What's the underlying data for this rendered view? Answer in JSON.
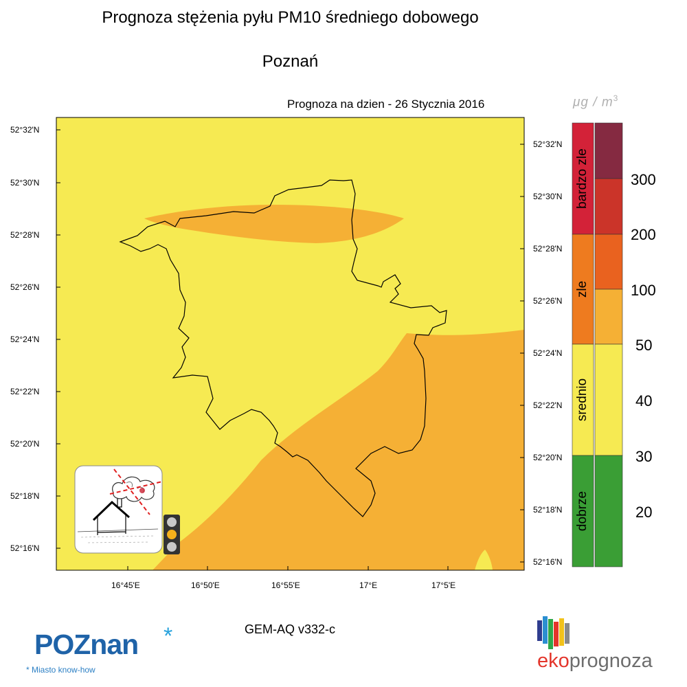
{
  "header": {
    "title": "Prognoza stężenia pyłu PM10 średniego dobowego",
    "city": "Poznań",
    "forecast_date": "Prognoza na dzien -  26 Stycznia 2016"
  },
  "legend": {
    "unit_main": "μg / m",
    "unit_exp": "3",
    "categories": [
      {
        "label": "bardzo zle",
        "color": "#d32238"
      },
      {
        "label": "zle",
        "color": "#ee7b1f"
      },
      {
        "label": "srednio",
        "color": "#f6ea52"
      },
      {
        "label": "dobrze",
        "color": "#3a9e35"
      }
    ],
    "bands": [
      {
        "color": "#852a41"
      },
      {
        "color": "#cb3429"
      },
      {
        "color": "#e9621f"
      },
      {
        "color": "#f5b035"
      },
      {
        "color": "#f6ea52"
      },
      {
        "color": "#f6ea52"
      },
      {
        "color": "#3a9e35"
      },
      {
        "color": "#3a9e35"
      }
    ],
    "levels": [
      "300",
      "200",
      "100",
      "50",
      "40",
      "30",
      "20"
    ]
  },
  "map": {
    "lat_labels_left": [
      "52°32'N",
      "52°30'N",
      "52°28'N",
      "52°26'N",
      "52°24'N",
      "52°22'N",
      "52°20'N",
      "52°18'N",
      "52°16'N"
    ],
    "lat_labels_right": [
      "52°32'N",
      "52°30'N",
      "52°28'N",
      "52°26'N",
      "52°24'N",
      "52°22'N",
      "52°20'N",
      "52°18'N",
      "52°16'N"
    ],
    "lon_labels": [
      "16°45'E",
      "16°50'E",
      "16°55'E",
      "17°E",
      "17°5'E"
    ],
    "colors": {
      "yellow": "#f6ea52",
      "orange": "#f5b035",
      "boundary": "#000000"
    }
  },
  "footer": {
    "model": "GEM-AQ v332-c",
    "poznan_logo": "POZnan",
    "poznan_star": "*",
    "poznan_tagline": "* Miasto know-how",
    "eko_logo_accent": "eko",
    "eko_logo_rest": "prognoza"
  },
  "icons": {
    "smog_icon": "house-smog-icon",
    "traffic_light": "traffic-light-icon"
  }
}
